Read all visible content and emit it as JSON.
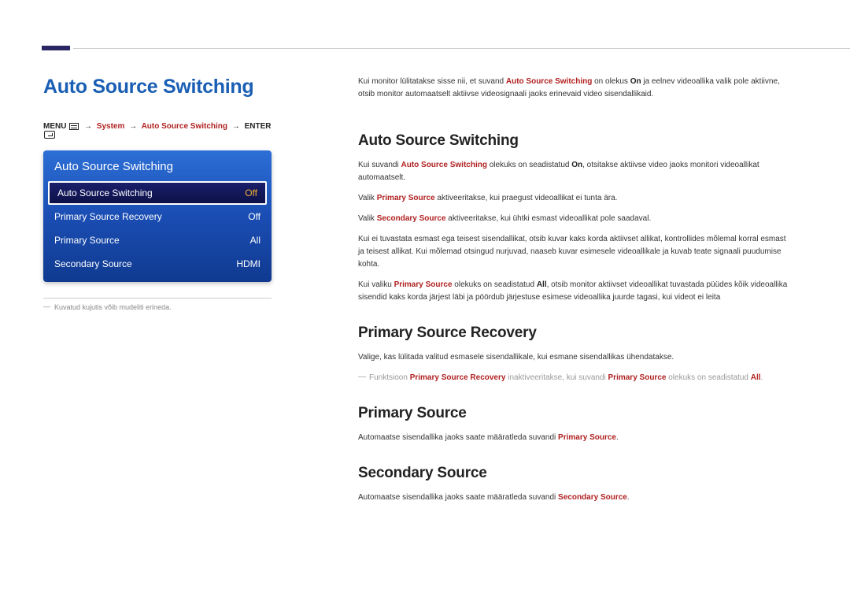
{
  "page_title": "Auto Source Switching",
  "menu_path": {
    "prefix": "MENU",
    "sep": "→",
    "system": "System",
    "item": "Auto Source Switching",
    "enter": "ENTER"
  },
  "menu_box": {
    "header": "Auto Source Switching",
    "items": [
      {
        "label": "Auto Source Switching",
        "value": "Off",
        "selected": true
      },
      {
        "label": "Primary Source Recovery",
        "value": "Off",
        "selected": false
      },
      {
        "label": "Primary Source",
        "value": "All",
        "selected": false
      },
      {
        "label": "Secondary Source",
        "value": "HDMI",
        "selected": false
      }
    ]
  },
  "left_footnote": "Kuvatud kujutis võib mudeliti erineda.",
  "intro": {
    "p1_a": "Kui monitor lülitatakse sisse nii, et suvand ",
    "p1_red1": "Auto Source Switching",
    "p1_b": " on olekus ",
    "p1_bold1": "On",
    "p1_c": " ja eelnev videoallika valik pole aktiivne, otsib monitor automaatselt aktiivse videosignaali jaoks erinevaid video sisendallikaid."
  },
  "sections": {
    "h1": "Auto Source Switching",
    "s1_p1_a": "Kui suvandi ",
    "s1_p1_red1": "Auto Source Switching",
    "s1_p1_b": " olekuks on seadistatud ",
    "s1_p1_bold1": "On",
    "s1_p1_c": ", otsitakse aktiivse video jaoks monitori videoallikat automaatselt.",
    "s1_p2_a": "Valik ",
    "s1_p2_red1": "Primary Source",
    "s1_p2_b": " aktiveeritakse, kui praegust videoallikat ei tunta ära.",
    "s1_p3_a": "Valik ",
    "s1_p3_red1": "Secondary Source",
    "s1_p3_b": " aktiveeritakse, kui ühtki esmast videoallikat pole saadaval.",
    "s1_p4": "Kui ei tuvastata esmast ega teisest sisendallikat, otsib kuvar kaks korda aktiivset allikat, kontrollides mõlemal korral esmast ja teisest allikat. Kui mõlemad otsingud nurjuvad, naaseb kuvar esimesele videoallikale ja kuvab teate signaali puudumise kohta.",
    "s1_p5_a": "Kui valiku ",
    "s1_p5_red1": "Primary Source",
    "s1_p5_b": " olekuks on seadistatud ",
    "s1_p5_bold1": "All",
    "s1_p5_c": ", otsib monitor aktiivset videoallikat tuvastada püüdes kõik videoallika sisendid kaks korda järjest läbi ja pöördub järjestuse esimese videoallika juurde tagasi, kui videot ei leita",
    "h2": "Primary Source Recovery",
    "s2_p1": "Valige, kas lülitada valitud esmasele sisendallikale, kui esmane sisendallikas ühendatakse.",
    "s2_note_a": "Funktsioon ",
    "s2_note_red1": "Primary Source Recovery",
    "s2_note_b": " inaktiveeritakse, kui suvandi ",
    "s2_note_red2": "Primary Source",
    "s2_note_c": " olekuks on seadistatud ",
    "s2_note_red3": "All",
    "s2_note_d": ".",
    "h3": "Primary Source",
    "s3_p1_a": "Automaatse sisendallika jaoks saate määratleda suvandi ",
    "s3_p1_red1": "Primary Source",
    "s3_p1_b": ".",
    "h4": "Secondary Source",
    "s4_p1_a": "Automaatse sisendallika jaoks saate määratleda suvandi ",
    "s4_p1_red1": "Secondary Source",
    "s4_p1_b": "."
  },
  "colors": {
    "accent_blue": "#1a5fb4",
    "red": "#b02020",
    "top_bar": "#2a2563",
    "menu_gradient_top": "#2c6fd6",
    "menu_gradient_mid": "#1a4db3",
    "menu_gradient_bot": "#103a90",
    "selected_bg_top": "#1a1f6b",
    "selected_bg_bot": "#0d1148",
    "selected_value": "#f0b030"
  }
}
